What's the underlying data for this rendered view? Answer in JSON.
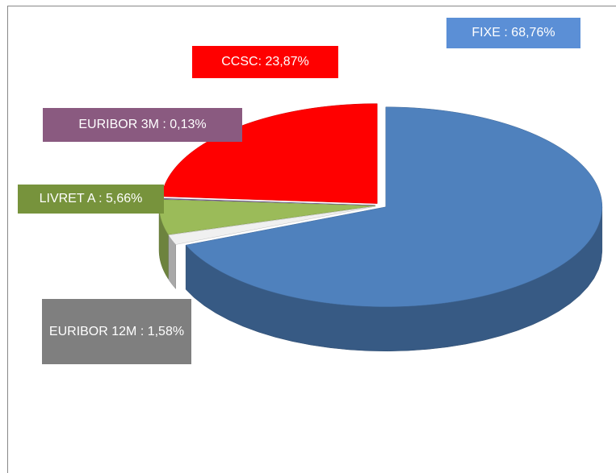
{
  "chart_data": {
    "type": "pie3d",
    "values": [
      68.76,
      1.58,
      5.66,
      0.13,
      23.87
    ],
    "value_labels": [
      "FIXE : 68,76%",
      "EURIBOR 12M : 1,58%",
      "LIVRET A : 5,66%",
      "EURIBOR 3M : 0,13%",
      "CCSC: 23,87%"
    ],
    "colors": [
      "#4f81bd",
      "#f0f0f0",
      "#9bbb59",
      "#8064a2",
      "#ff0000"
    ],
    "label_colors": [
      "#5b8fd6",
      "#7f7f7f",
      "#77933c",
      "#8a5a80",
      "#ff0000"
    ]
  }
}
